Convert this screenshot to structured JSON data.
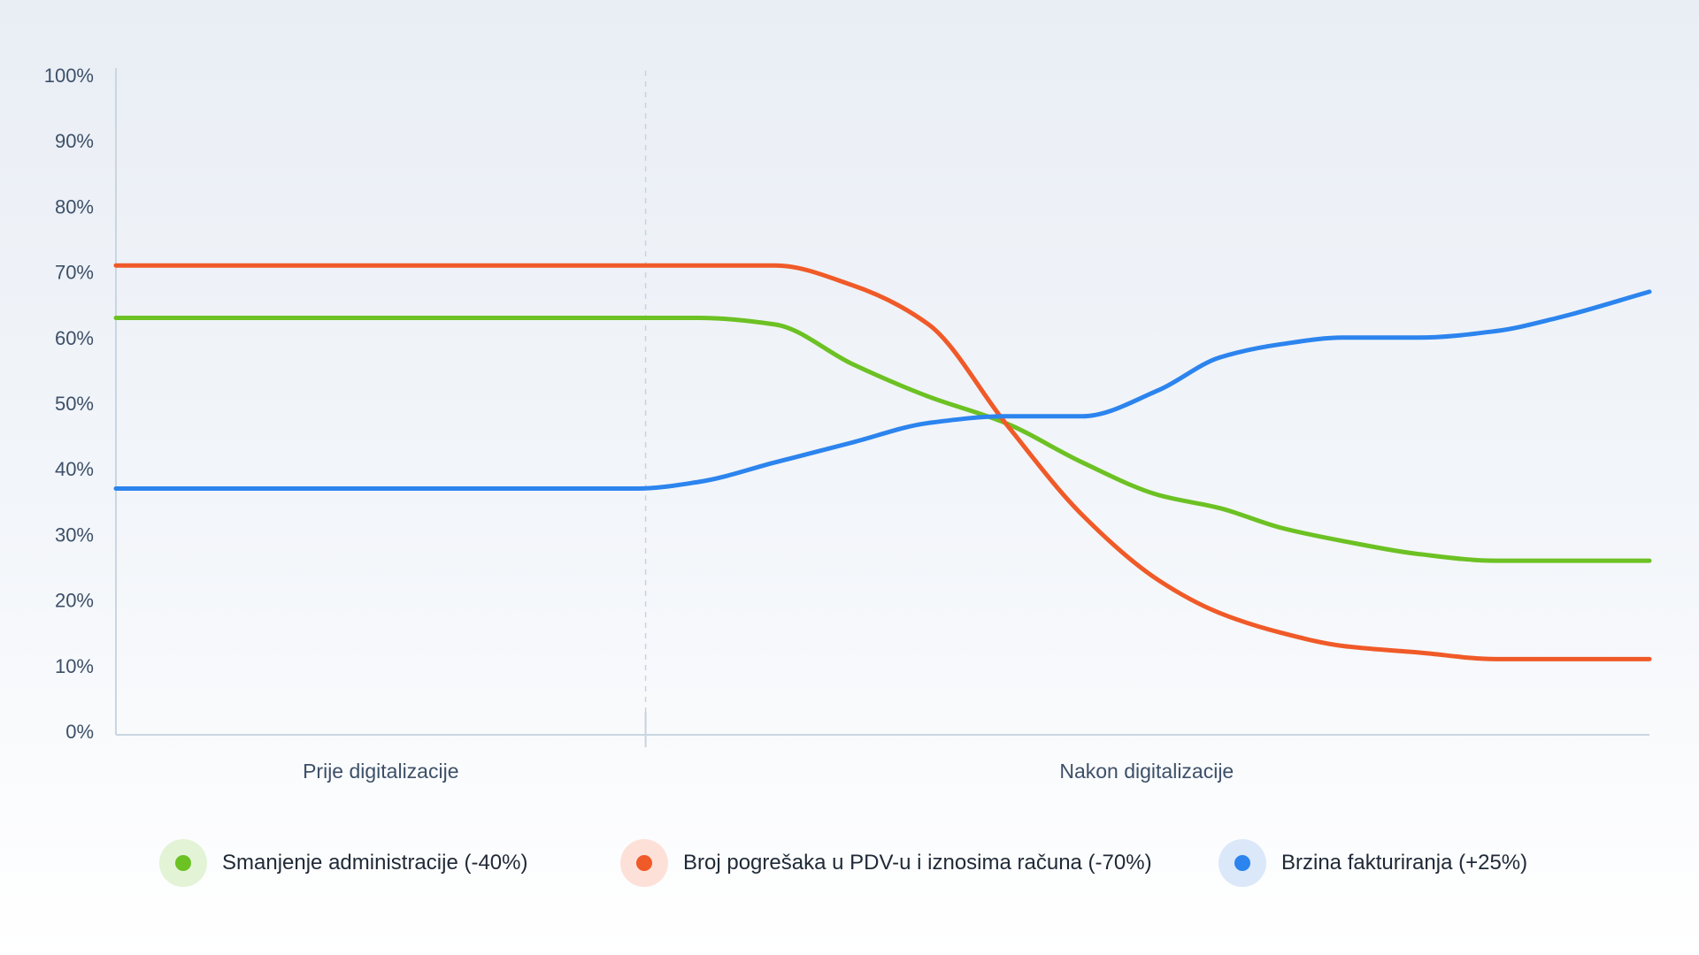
{
  "chart_data": {
    "type": "line",
    "title": "",
    "xlabel": "",
    "ylabel": "",
    "ylim": [
      0,
      100
    ],
    "y_ticks": [
      "0%",
      "10%",
      "20%",
      "30%",
      "40%",
      "50%",
      "60%",
      "70%",
      "80%",
      "90%",
      "100%"
    ],
    "categories": [
      "Prije digitalizacije",
      "Nakon digitalizacije"
    ],
    "grid": false,
    "legend_position": "bottom",
    "x": [
      0,
      10,
      20,
      30,
      34,
      38,
      43,
      48,
      53,
      58,
      63,
      68,
      72,
      76,
      80,
      85,
      90,
      94,
      100
    ],
    "series": [
      {
        "name": "Smanjenje administracije (-40%)",
        "color": "#6cc123",
        "values": [
          63,
          63,
          63,
          63,
          63,
          63,
          62,
          56,
          51,
          47,
          41,
          36,
          34,
          31,
          29,
          27,
          26,
          26,
          26
        ]
      },
      {
        "name": "Broj pogrešaka u PDV-u i iznosima računa (-70%)",
        "color": "#f05a28",
        "values": [
          71,
          71,
          71,
          71,
          71,
          71,
          71,
          68,
          62,
          47,
          33,
          23,
          18,
          15,
          13,
          12,
          11,
          11,
          11
        ]
      },
      {
        "name": "Brzina fakturiranja (+25%)",
        "color": "#2c84ee",
        "values": [
          37,
          37,
          37,
          37,
          37,
          38,
          41,
          44,
          47,
          48,
          48,
          52,
          57,
          59,
          60,
          60,
          61,
          63,
          67
        ]
      }
    ]
  },
  "colors": {
    "axis": "#c9d6e2",
    "divider": "#c9d3de",
    "tick_text": "#3d5068"
  }
}
